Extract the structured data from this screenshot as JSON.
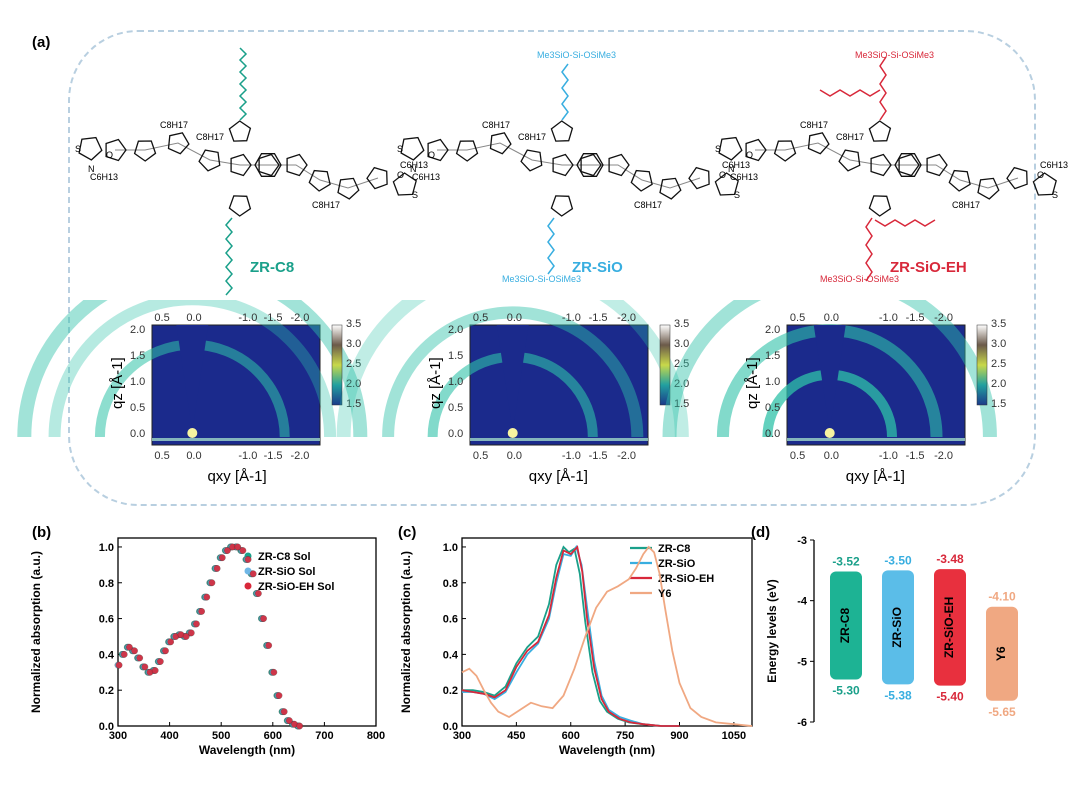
{
  "figure": {
    "panel_labels": [
      "(a)",
      "(b)",
      "(c)",
      "(d)"
    ]
  },
  "molecules": [
    {
      "name": "ZR-C8",
      "color": "#1aa08a",
      "sidechain_formula": "",
      "branched": false
    },
    {
      "name": "ZR-SiO",
      "color": "#38aee0",
      "sidechain_formula": "Me3SiO-Si-OSiMe3",
      "branched": false
    },
    {
      "name": "ZR-SiO-EH",
      "color": "#d8283a",
      "sidechain_formula": "Me3SiO-Si-OSiMe3",
      "branched": true
    }
  ],
  "core_labels": {
    "c8h17": "C8H17",
    "c6h13": "C6H13",
    "n": "N",
    "s": "S",
    "o": "O"
  },
  "chart_data": [
    {
      "type": "heatmap",
      "panel": "a",
      "xlabel": "qxy [Å-1]",
      "ylabel": "qz [Å-1]",
      "x_ticks": [
        "0.5",
        "0.0",
        "-1.0",
        "-1.5",
        "-2.0"
      ],
      "y_ticks": [
        "0.0",
        "0.5",
        "1.0",
        "1.5",
        "2.0"
      ],
      "colorbar_ticks": [
        "1.5",
        "2.0",
        "2.5",
        "3.0",
        "3.5"
      ],
      "colorbar_range": [
        1.5,
        3.5
      ],
      "maps": [
        {
          "name": "ZR-C8",
          "arc_radii": [
            0.55,
            0.82,
            1.0
          ],
          "arc_intensity": [
            0.55,
            0.35,
            0.45
          ],
          "xlim_right": -1.75
        },
        {
          "name": "ZR-SiO",
          "arc_radii": [
            0.45,
            0.7,
            0.95
          ],
          "arc_intensity": [
            0.6,
            0.45,
            0.3
          ],
          "xlim_right": -1.6
        },
        {
          "name": "ZR-SiO-EH",
          "arc_radii": [
            0.35,
            0.6,
            0.9
          ],
          "arc_intensity": [
            0.75,
            0.6,
            0.45
          ],
          "xlim_right": -1.6
        }
      ]
    },
    {
      "type": "scatter",
      "panel": "b",
      "xlabel": "Wavelength (nm)",
      "ylabel": "Normalized absorption (a.u.)",
      "xlim": [
        300,
        800
      ],
      "ylim": [
        0,
        1.05
      ],
      "x_ticks": [
        300,
        400,
        500,
        600,
        700,
        800
      ],
      "y_ticks": [
        0.0,
        0.2,
        0.4,
        0.6,
        0.8,
        1.0
      ],
      "legend_position": "top-right",
      "x": [
        300,
        310,
        320,
        330,
        340,
        350,
        360,
        370,
        380,
        390,
        400,
        410,
        420,
        430,
        440,
        450,
        460,
        470,
        480,
        490,
        500,
        510,
        520,
        530,
        540,
        550,
        560,
        570,
        580,
        590,
        600,
        610,
        620,
        630,
        640,
        650
      ],
      "series": [
        {
          "name": "ZR-C8 Sol",
          "color": "#1aa08a",
          "shift": -2
        },
        {
          "name": "ZR-SiO Sol",
          "color": "#6fb7e6",
          "shift": 0
        },
        {
          "name": "ZR-SiO-EH Sol",
          "color": "#d8283a",
          "shift": 2
        }
      ],
      "base_values": [
        0.34,
        0.4,
        0.44,
        0.42,
        0.38,
        0.33,
        0.3,
        0.31,
        0.36,
        0.42,
        0.47,
        0.5,
        0.51,
        0.5,
        0.52,
        0.57,
        0.64,
        0.72,
        0.8,
        0.88,
        0.94,
        0.98,
        1.0,
        1.0,
        0.98,
        0.93,
        0.85,
        0.74,
        0.6,
        0.45,
        0.3,
        0.17,
        0.08,
        0.03,
        0.01,
        0.0
      ]
    },
    {
      "type": "line",
      "panel": "c",
      "xlabel": "Wavelength (nm)",
      "ylabel": "Normalized absorption (a.u.)",
      "xlim": [
        300,
        1100
      ],
      "ylim": [
        0,
        1.05
      ],
      "x_ticks": [
        300,
        450,
        600,
        750,
        900,
        1050
      ],
      "y_ticks": [
        0.0,
        0.2,
        0.4,
        0.6,
        0.8,
        1.0
      ],
      "legend_position": "top-right",
      "series": [
        {
          "name": "ZR-C8",
          "color": "#1aa08a",
          "x": [
            300,
            330,
            360,
            390,
            420,
            450,
            480,
            510,
            540,
            560,
            580,
            595,
            610,
            625,
            640,
            660,
            680,
            700,
            730,
            760,
            800,
            850,
            900
          ],
          "y": [
            0.2,
            0.2,
            0.19,
            0.17,
            0.22,
            0.35,
            0.44,
            0.5,
            0.68,
            0.9,
            1.0,
            0.97,
            0.99,
            0.85,
            0.58,
            0.3,
            0.14,
            0.08,
            0.04,
            0.02,
            0.01,
            0.0,
            0.0
          ]
        },
        {
          "name": "ZR-SiO",
          "color": "#38aee0",
          "x": [
            300,
            330,
            360,
            390,
            420,
            450,
            480,
            510,
            540,
            560,
            580,
            600,
            615,
            630,
            645,
            665,
            685,
            705,
            735,
            765,
            800,
            850,
            900
          ],
          "y": [
            0.19,
            0.19,
            0.18,
            0.15,
            0.19,
            0.3,
            0.4,
            0.46,
            0.6,
            0.8,
            0.96,
            0.95,
            1.0,
            0.9,
            0.66,
            0.36,
            0.17,
            0.09,
            0.05,
            0.03,
            0.01,
            0.0,
            0.0
          ]
        },
        {
          "name": "ZR-SiO-EH",
          "color": "#d8283a",
          "x": [
            300,
            330,
            360,
            390,
            420,
            450,
            480,
            510,
            540,
            560,
            580,
            600,
            618,
            632,
            645,
            665,
            685,
            705,
            735,
            765,
            800,
            850,
            900
          ],
          "y": [
            0.2,
            0.19,
            0.18,
            0.16,
            0.2,
            0.33,
            0.42,
            0.47,
            0.62,
            0.83,
            0.98,
            0.96,
            1.0,
            0.86,
            0.6,
            0.32,
            0.15,
            0.08,
            0.04,
            0.02,
            0.01,
            0.0,
            0.0
          ]
        },
        {
          "name": "Y6",
          "color": "#f0a882",
          "x": [
            300,
            320,
            340,
            360,
            380,
            400,
            430,
            460,
            490,
            520,
            550,
            580,
            610,
            640,
            670,
            700,
            730,
            760,
            780,
            800,
            815,
            830,
            845,
            860,
            880,
            900,
            930,
            960,
            1000,
            1050,
            1100
          ],
          "y": [
            0.3,
            0.32,
            0.28,
            0.2,
            0.13,
            0.08,
            0.05,
            0.09,
            0.13,
            0.11,
            0.1,
            0.17,
            0.32,
            0.5,
            0.66,
            0.75,
            0.78,
            0.82,
            0.88,
            0.96,
            1.0,
            0.97,
            0.85,
            0.66,
            0.42,
            0.24,
            0.1,
            0.05,
            0.02,
            0.01,
            0.0
          ]
        }
      ]
    },
    {
      "type": "bar",
      "panel": "d",
      "ylabel": "Energy levels (eV)",
      "ylim": [
        -6,
        -3
      ],
      "y_ticks": [
        -3,
        -4,
        -5,
        -6
      ],
      "categories": [
        "ZR-C8",
        "ZR-SiO",
        "ZR-SiO-EH",
        "Y6"
      ],
      "lumo": [
        -3.52,
        -3.5,
        -3.48,
        -4.1
      ],
      "homo": [
        -5.3,
        -5.38,
        -5.4,
        -5.65
      ],
      "lumo_labels": [
        "-3.52",
        "-3.50",
        "-3.48",
        "-4.10"
      ],
      "homo_labels": [
        "-5.30",
        "-5.38",
        "-5.40",
        "-5.65"
      ],
      "colors": [
        "#1db394",
        "#5bbde8",
        "#e8303e",
        "#f0a882"
      ],
      "label_colors": [
        "#1aa08a",
        "#38aee0",
        "#d8283a",
        "#f0a882"
      ]
    }
  ]
}
